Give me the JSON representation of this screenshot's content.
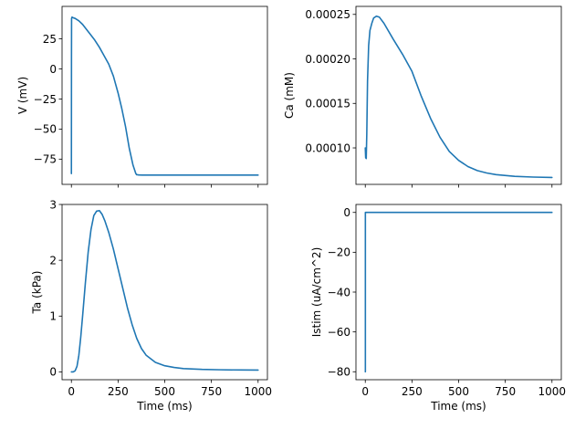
{
  "figure": {
    "line_color": "#1f77b4"
  },
  "chart_data": [
    {
      "type": "line",
      "xlabel": "",
      "ylabel": "V (mV)",
      "xlim": [
        -50,
        1050
      ],
      "ylim": [
        -96,
        52
      ],
      "xticks": [
        0,
        250,
        500,
        750,
        1000
      ],
      "show_xtick_labels": false,
      "yticks": [
        25,
        0,
        -25,
        -50,
        -75
      ],
      "ytick_labels": [
        "25",
        "0",
        "−25",
        "−50",
        "−75"
      ],
      "x": [
        0,
        0.5,
        1,
        3,
        5,
        10,
        20,
        40,
        60,
        80,
        100,
        125,
        150,
        175,
        200,
        225,
        250,
        270,
        290,
        310,
        330,
        345,
        350,
        355,
        360,
        380,
        450,
        600,
        800,
        1000
      ],
      "y": [
        -87,
        10,
        42,
        43,
        43,
        42.5,
        42,
        40,
        37,
        33,
        29,
        24,
        18,
        11,
        4,
        -6,
        -20,
        -33,
        -48,
        -66,
        -80,
        -87,
        -88,
        -88,
        -88.2,
        -88.3,
        -88.3,
        -88.3,
        -88.3,
        -88.3
      ]
    },
    {
      "type": "line",
      "xlabel": "",
      "ylabel": "Ca (mM)",
      "xlim": [
        -50,
        1050
      ],
      "ylim": [
        5.9e-05,
        0.000259
      ],
      "xticks": [
        0,
        250,
        500,
        750,
        1000
      ],
      "show_xtick_labels": false,
      "yticks": [
        0.00025,
        0.0002,
        0.00015,
        0.0001
      ],
      "ytick_labels": [
        "0.00025",
        "0.00020",
        "0.00015",
        "0.00010"
      ],
      "x": [
        0,
        2,
        5,
        8,
        12,
        18,
        25,
        35,
        45,
        60,
        75,
        100,
        150,
        200,
        250,
        300,
        350,
        400,
        450,
        500,
        550,
        600,
        650,
        700,
        800,
        900,
        1000
      ],
      "y": [
        0.0001,
        8.9e-05,
        8.8e-05,
        0.000115,
        0.000175,
        0.000215,
        0.000232,
        0.00024,
        0.000246,
        0.000248,
        0.000247,
        0.00024,
        0.000222,
        0.000205,
        0.000186,
        0.000158,
        0.000133,
        0.000112,
        9.6e-05,
        8.6e-05,
        7.9e-05,
        7.45e-05,
        7.18e-05,
        7e-05,
        6.8e-05,
        6.72e-05,
        6.68e-05
      ]
    },
    {
      "type": "line",
      "xlabel": "Time (ms)",
      "ylabel": "Ta (kPa)",
      "xlim": [
        -50,
        1050
      ],
      "ylim": [
        -0.14,
        3.0
      ],
      "xticks": [
        0,
        250,
        500,
        750,
        1000
      ],
      "show_xtick_labels": true,
      "xtick_labels": [
        "0",
        "250",
        "500",
        "750",
        "1000"
      ],
      "yticks": [
        3,
        2,
        1,
        0
      ],
      "ytick_labels": [
        "3",
        "2",
        "1",
        "0"
      ],
      "x": [
        0,
        10,
        20,
        30,
        40,
        50,
        60,
        75,
        90,
        105,
        120,
        135,
        150,
        165,
        180,
        200,
        225,
        250,
        275,
        300,
        325,
        350,
        375,
        400,
        450,
        500,
        550,
        600,
        700,
        800,
        900,
        1000
      ],
      "y": [
        0,
        0,
        0.02,
        0.1,
        0.3,
        0.62,
        1.0,
        1.6,
        2.15,
        2.55,
        2.8,
        2.88,
        2.89,
        2.82,
        2.7,
        2.5,
        2.2,
        1.85,
        1.5,
        1.15,
        0.85,
        0.6,
        0.42,
        0.3,
        0.17,
        0.11,
        0.08,
        0.06,
        0.045,
        0.038,
        0.034,
        0.032
      ]
    },
    {
      "type": "line",
      "xlabel": "Time (ms)",
      "ylabel": "Istim (uA/cm^2)",
      "xlim": [
        -50,
        1050
      ],
      "ylim": [
        -84,
        4
      ],
      "xticks": [
        0,
        250,
        500,
        750,
        1000
      ],
      "show_xtick_labels": true,
      "xtick_labels": [
        "0",
        "250",
        "500",
        "750",
        "1000"
      ],
      "yticks": [
        0,
        -20,
        -40,
        -60,
        -80
      ],
      "ytick_labels": [
        "0",
        "−20",
        "−40",
        "−60",
        "−80"
      ],
      "x": [
        0,
        0.5,
        0.5,
        1000
      ],
      "y": [
        -80,
        -80,
        0,
        0
      ]
    }
  ]
}
